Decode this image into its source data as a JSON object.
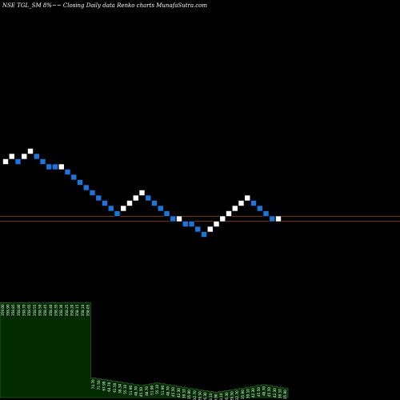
{
  "header": {
    "text": "NSE TGL_SM  8%~~  Closing Daily data  Renko  charts MunafaSutra.com"
  },
  "colors": {
    "background": "#000000",
    "up_brick": "#ffffff",
    "down_brick": "#1e74d8",
    "ref_line": "#a0522d",
    "volume_fill": "#022b02",
    "volume_stroke": "#2e7d2e",
    "label": "#ffffff"
  },
  "chart_data": {
    "type": "renko",
    "brick_size_percent": 8,
    "price_scale_note": "brick levels shown as integer steps (no price axis printed)",
    "bricks": [
      {
        "dir": "up",
        "level": 0
      },
      {
        "dir": "up",
        "level": 1
      },
      {
        "dir": "down",
        "level": 0
      },
      {
        "dir": "up",
        "level": 1
      },
      {
        "dir": "up",
        "level": 2
      },
      {
        "dir": "down",
        "level": 1
      },
      {
        "dir": "down",
        "level": 0
      },
      {
        "dir": "down",
        "level": -1
      },
      {
        "dir": "down",
        "level": -1
      },
      {
        "dir": "up",
        "level": -1
      },
      {
        "dir": "down",
        "level": -2
      },
      {
        "dir": "down",
        "level": -3
      },
      {
        "dir": "down",
        "level": -4
      },
      {
        "dir": "down",
        "level": -5
      },
      {
        "dir": "down",
        "level": -6
      },
      {
        "dir": "down",
        "level": -7
      },
      {
        "dir": "down",
        "level": -8
      },
      {
        "dir": "down",
        "level": -9
      },
      {
        "dir": "down",
        "level": -10
      },
      {
        "dir": "up",
        "level": -9
      },
      {
        "dir": "up",
        "level": -8
      },
      {
        "dir": "up",
        "level": -7
      },
      {
        "dir": "up",
        "level": -6
      },
      {
        "dir": "down",
        "level": -7
      },
      {
        "dir": "down",
        "level": -8
      },
      {
        "dir": "down",
        "level": -9
      },
      {
        "dir": "down",
        "level": -10
      },
      {
        "dir": "down",
        "level": -11
      },
      {
        "dir": "up",
        "level": -11
      },
      {
        "dir": "down",
        "level": -12
      },
      {
        "dir": "down",
        "level": -12
      },
      {
        "dir": "down",
        "level": -13
      },
      {
        "dir": "down",
        "level": -14
      },
      {
        "dir": "up",
        "level": -13
      },
      {
        "dir": "up",
        "level": -12
      },
      {
        "dir": "up",
        "level": -11
      },
      {
        "dir": "up",
        "level": -10
      },
      {
        "dir": "up",
        "level": -9
      },
      {
        "dir": "up",
        "level": -8
      },
      {
        "dir": "up",
        "level": -7
      },
      {
        "dir": "down",
        "level": -8
      },
      {
        "dir": "down",
        "level": -9
      },
      {
        "dir": "down",
        "level": -10
      },
      {
        "dir": "down",
        "level": -11
      },
      {
        "dir": "up",
        "level": -11
      }
    ],
    "reference_levels": [
      -10.5,
      -11.5
    ],
    "volume_labels": [
      "359.00",
      "358.90",
      "358.85",
      "358.80",
      "358.70",
      "358.65",
      "358.55",
      "358.50",
      "358.45",
      "358.40",
      "358.35",
      "358.30",
      "358.25",
      "358.20",
      "358.15",
      "358.10",
      "358.05",
      "74.70",
      "71.50",
      "67.90",
      "64.70",
      "61.50",
      "58.30",
      "55.10",
      "51.90",
      "48.70",
      "45.50",
      "48.70",
      "51.90",
      "55.10",
      "51.90",
      "48.70",
      "45.50",
      "42.30",
      "39.10",
      "35.90",
      "32.70",
      "29.50",
      "26.30",
      "23.10",
      "19.90",
      "23.10",
      "26.30",
      "29.50",
      "32.70",
      "35.90",
      "39.10",
      "42.30",
      "45.50",
      "48.70",
      "45.50",
      "42.30",
      "39.10",
      "35.90"
    ]
  }
}
